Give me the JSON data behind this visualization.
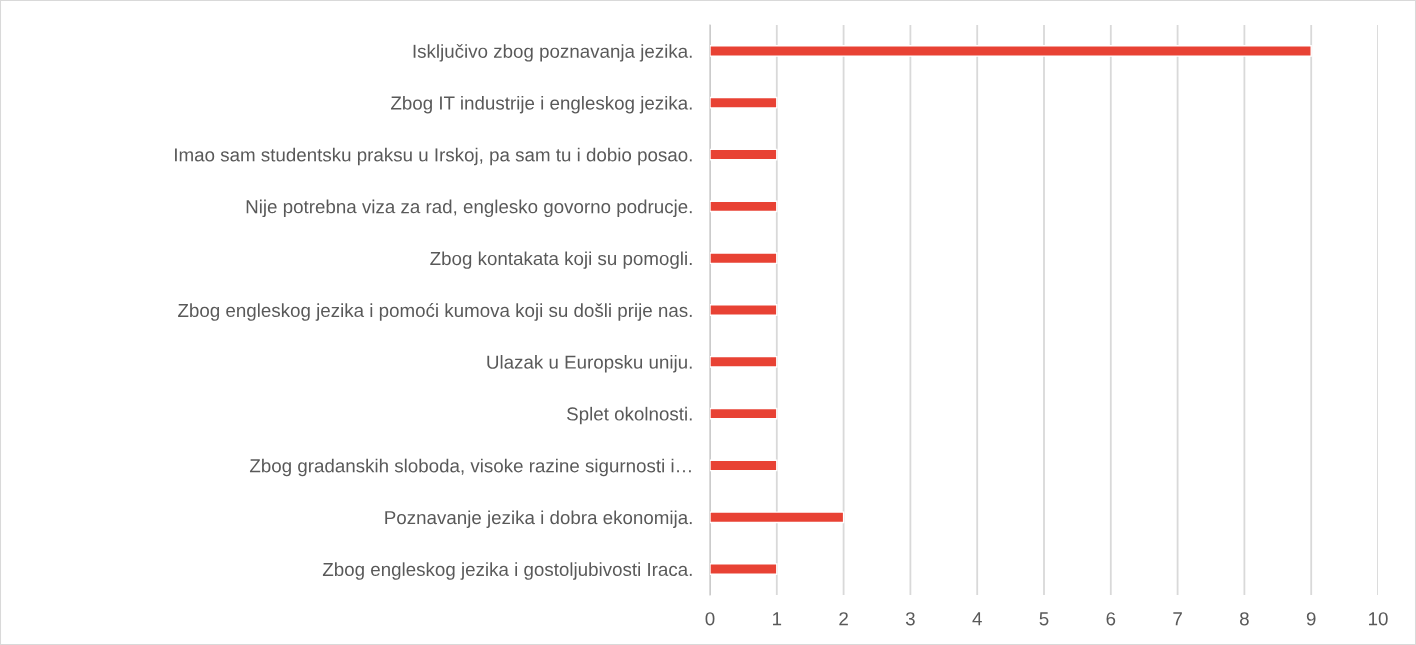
{
  "chart_data": {
    "type": "bar",
    "orientation": "horizontal",
    "categories": [
      "Isključivo zbog poznavanja jezika.",
      "Zbog IT industrije i engleskog jezika.",
      "Imao sam studentsku praksu u Irskoj, pa sam tu i dobio posao.",
      "Nije potrebna viza za rad, englesko govorno podrucje.",
      "Zbog kontakata koji su pomogli.",
      "Zbog engleskog jezika i pomoći kumova koji su došli prije nas.",
      "Ulazak u Europsku uniju.",
      "Splet okolnosti.",
      "Zbog gradanskih sloboda, visoke razine sigurnosti i…",
      "Poznavanje jezika i dobra ekonomija.",
      "Zbog engleskog jezika i gostoljubivosti Iraca."
    ],
    "values": [
      9,
      1,
      1,
      1,
      1,
      1,
      1,
      1,
      1,
      2,
      1
    ],
    "color": "#e84234",
    "xlim": [
      0,
      10
    ],
    "xticks": [
      0,
      1,
      2,
      3,
      4,
      5,
      6,
      7,
      8,
      9,
      10
    ],
    "grid": "x",
    "legend": false
  }
}
